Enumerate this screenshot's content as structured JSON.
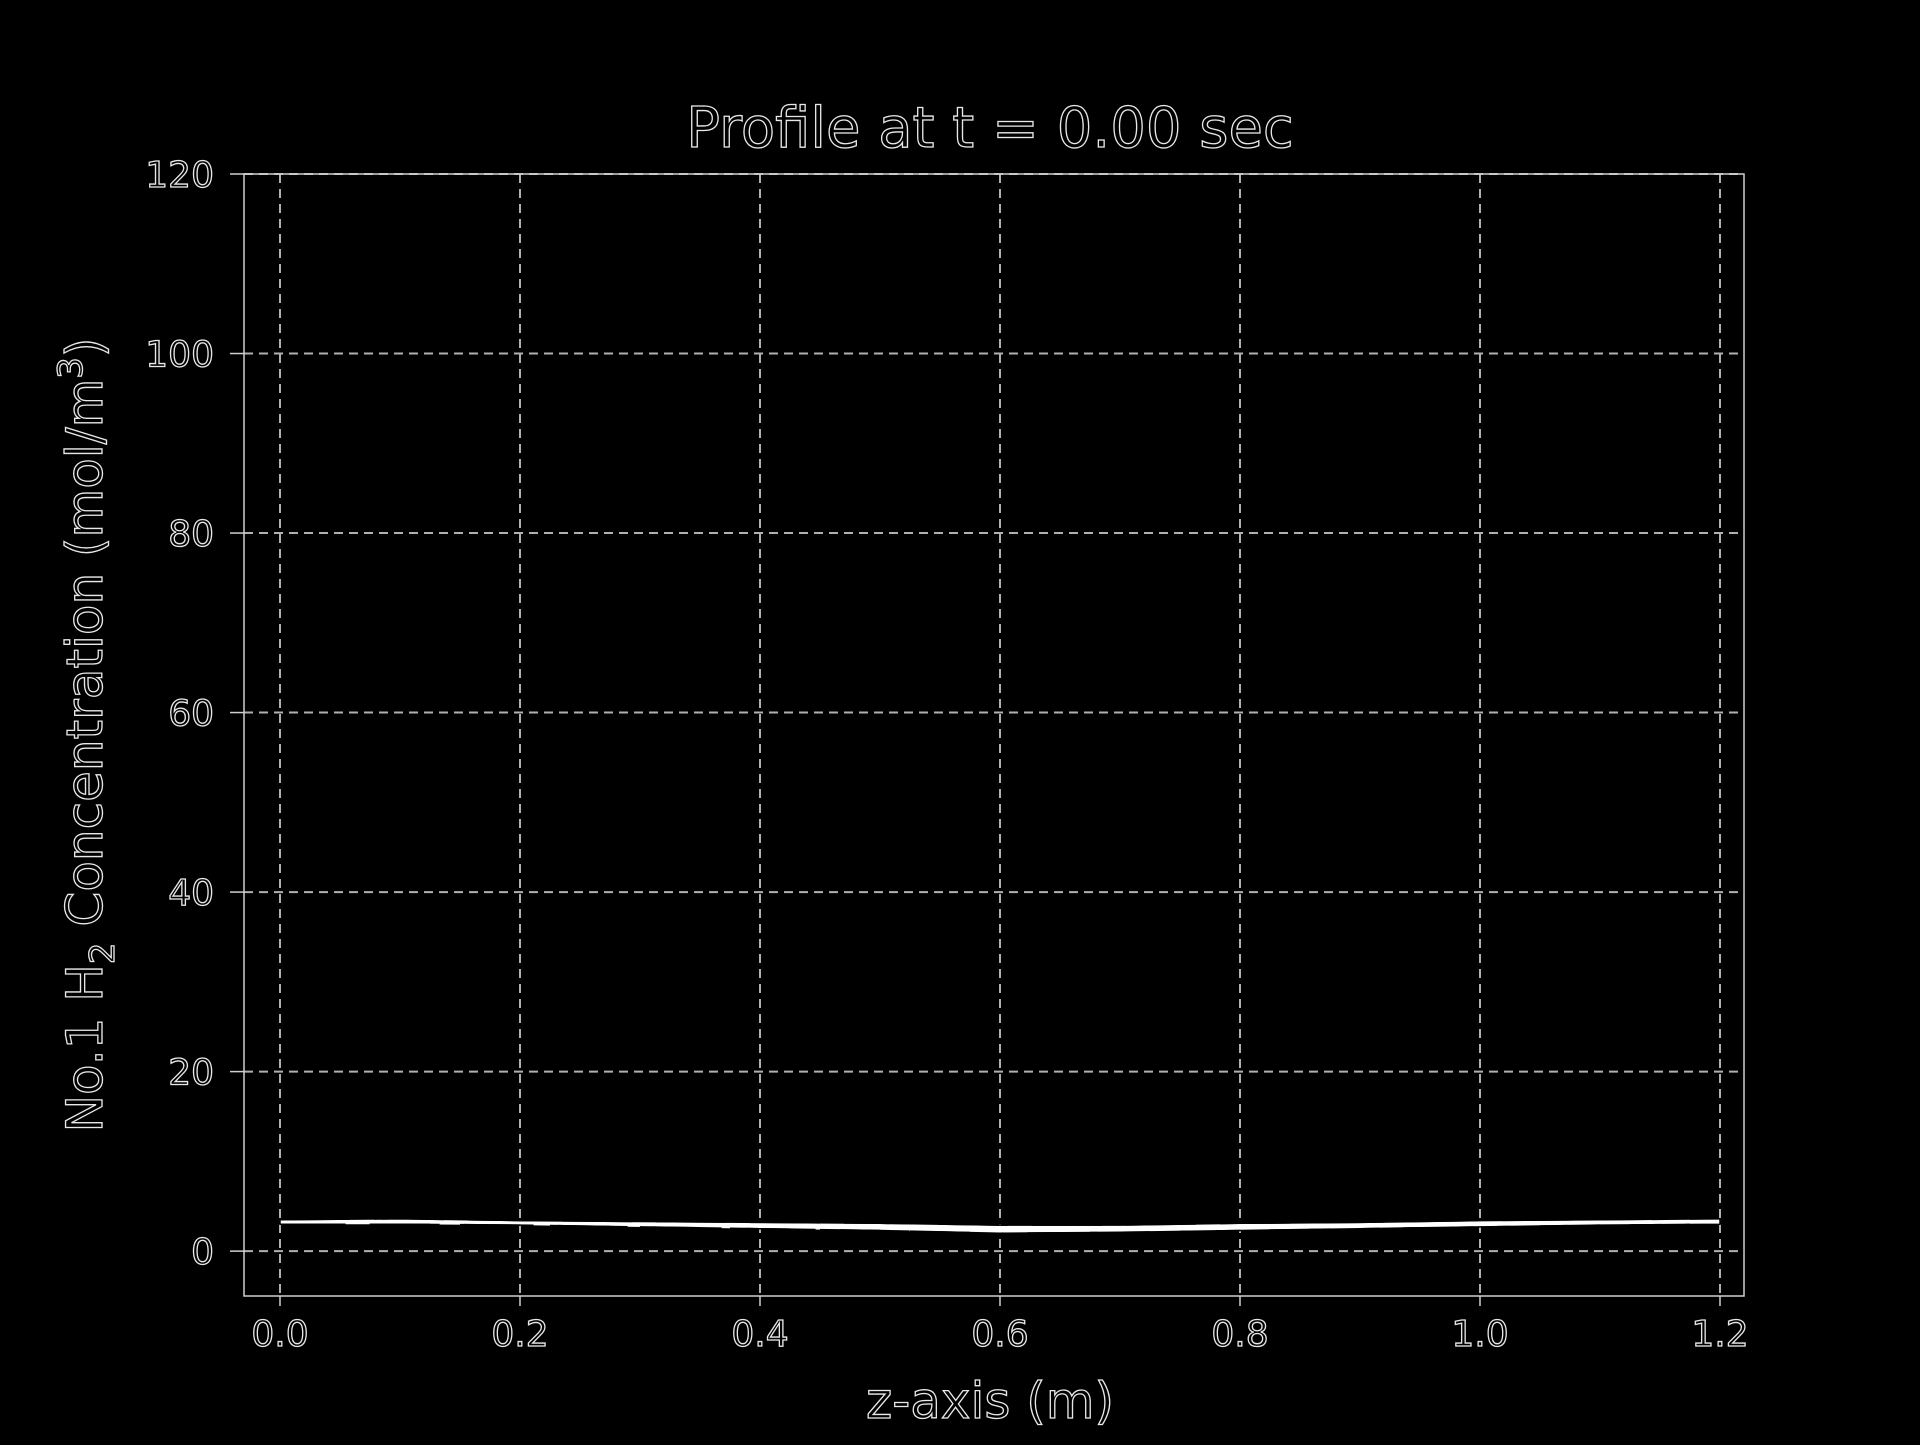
{
  "chart_data": {
    "type": "line",
    "title": "Profile at t = 0.00 sec",
    "xlabel": "z-axis (m)",
    "ylabel": {
      "prefix": "No.1 H",
      "sub": "2",
      "middle": " Concentration (mol/m",
      "sup": "3",
      "suffix": ")"
    },
    "xlim": [
      -0.03,
      1.22
    ],
    "ylim": [
      -5,
      120
    ],
    "xticks": [
      0.0,
      0.2,
      0.4,
      0.6,
      0.8,
      1.0,
      1.2
    ],
    "xtick_labels": [
      "0.0",
      "0.2",
      "0.4",
      "0.6",
      "0.8",
      "1.0",
      "1.2"
    ],
    "yticks": [
      0,
      20,
      40,
      60,
      80,
      100,
      120
    ],
    "ytick_labels": [
      "0",
      "20",
      "40",
      "60",
      "80",
      "100",
      "120"
    ],
    "grid": true,
    "grid_style": "dashed",
    "series": [
      {
        "x": [
          0.0,
          0.1,
          0.2,
          0.3,
          0.4,
          0.5,
          0.6,
          0.7,
          0.8,
          0.9,
          1.0,
          1.1,
          1.2
        ],
        "upper": [
          3.5,
          3.6,
          3.4,
          3.3,
          3.2,
          3.1,
          2.9,
          2.9,
          3.1,
          3.2,
          3.4,
          3.5,
          3.6
        ],
        "lower": [
          3.0,
          3.0,
          2.9,
          2.7,
          2.5,
          2.3,
          2.0,
          2.1,
          2.3,
          2.5,
          2.7,
          2.9,
          3.0
        ]
      }
    ],
    "colors": {
      "background": "#000000",
      "grid": "#b0b0b0",
      "frame": "#cfcfcf",
      "text_outline": "#e8e8e8",
      "line": "#ffffff"
    }
  }
}
